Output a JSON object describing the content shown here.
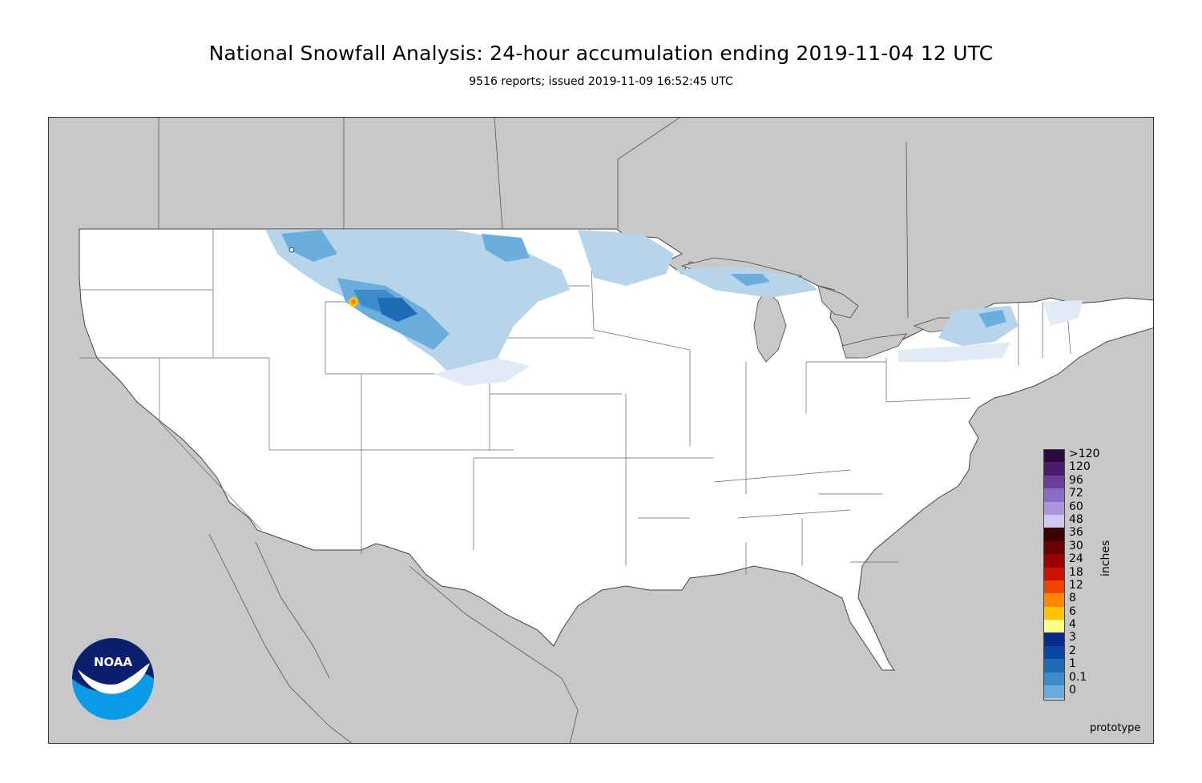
{
  "title": "National Snowfall Analysis: 24-hour accumulation ending 2019-11-04 12 UTC",
  "subtitle": "9516 reports; issued 2019-11-09 16:52:45 UTC",
  "units_label": "inches",
  "footer_note": "prototype",
  "logo_text": "NOAA",
  "colors": {
    "background_land_outside": "#c8c8c8",
    "usa_fill": "#ffffff",
    "border_line": "#555555"
  },
  "legend": [
    {
      "label": ">120",
      "color": "#2b0a3d"
    },
    {
      "label": "120",
      "color": "#4a1a6b"
    },
    {
      "label": "96",
      "color": "#6a3d9a"
    },
    {
      "label": "72",
      "color": "#8c6bc8"
    },
    {
      "label": "60",
      "color": "#a996dc"
    },
    {
      "label": "48",
      "color": "#cfc9f2"
    },
    {
      "label": "36",
      "color": "#3d0000"
    },
    {
      "label": "30",
      "color": "#6a0000"
    },
    {
      "label": "24",
      "color": "#9a0000"
    },
    {
      "label": "18",
      "color": "#cc1100"
    },
    {
      "label": "12",
      "color": "#ee4400"
    },
    {
      "label": "8",
      "color": "#ff8800"
    },
    {
      "label": "6",
      "color": "#ffc400"
    },
    {
      "label": "4",
      "color": "#ffff88"
    },
    {
      "label": "3",
      "color": "#0a2a8c"
    },
    {
      "label": "2",
      "color": "#0b47a8"
    },
    {
      "label": "1",
      "color": "#1f6bb8"
    },
    {
      "label": "0.1",
      "color": "#3d8ccc"
    },
    {
      "label": "0",
      "color": "#6aaedd"
    }
  ],
  "legend_extra_colors": [
    "#b6d4ea",
    "#e2ebf5",
    "#ffffff"
  ]
}
